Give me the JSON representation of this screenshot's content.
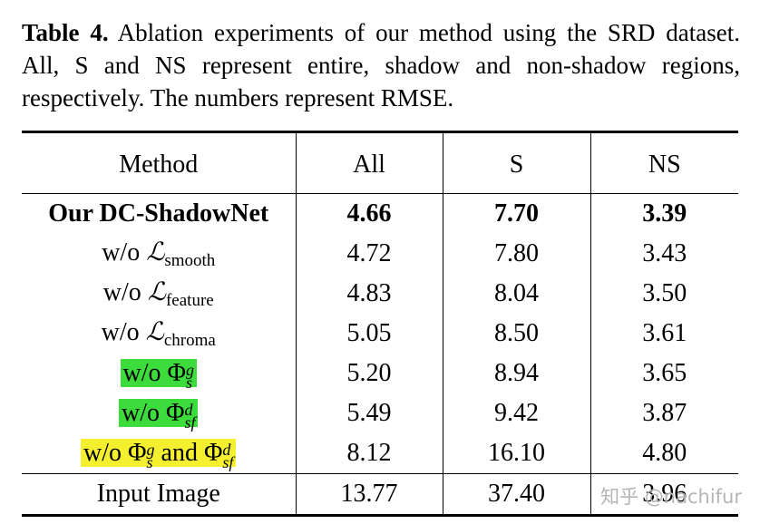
{
  "caption": {
    "label": "Table 4.",
    "text": "Ablation experiments of our method using the SRD dataset. All, S and NS represent entire, shadow and non-shadow regions, respectively. The numbers represent RMSE."
  },
  "table": {
    "headers": [
      "Method",
      "All",
      "S",
      "NS"
    ],
    "rows": [
      {
        "method": "Our DC-ShadowNet",
        "all": "4.66",
        "s": "7.70",
        "ns": "3.39"
      },
      {
        "method_prefix": "w/o",
        "loss_symbol": "ℒ",
        "loss_sub": "smooth",
        "all": "4.72",
        "s": "7.80",
        "ns": "3.43"
      },
      {
        "method_prefix": "w/o",
        "loss_symbol": "ℒ",
        "loss_sub": "feature",
        "all": "4.83",
        "s": "8.04",
        "ns": "3.50"
      },
      {
        "method_prefix": "w/o",
        "loss_symbol": "ℒ",
        "loss_sub": "chroma",
        "all": "5.05",
        "s": "8.50",
        "ns": "3.61"
      },
      {
        "method_prefix": "w/o",
        "phi": "Φ",
        "sup": "g",
        "sub": "s",
        "all": "5.20",
        "s": "8.94",
        "ns": "3.65"
      },
      {
        "method_prefix": "w/o",
        "phi": "Φ",
        "sup": "d",
        "sub": "sf",
        "all": "5.49",
        "s": "9.42",
        "ns": "3.87"
      },
      {
        "method_prefix": "w/o",
        "phi": "Φ",
        "sup": "g",
        "sub": "s",
        "and": "and",
        "phi2": "Φ",
        "sup2": "d",
        "sub2": "sf",
        "all": "8.12",
        "s": "16.10",
        "ns": "4.80"
      },
      {
        "method": "Input Image",
        "all": "13.77",
        "s": "37.40",
        "ns": "3.96"
      }
    ]
  },
  "watermark": "知乎 @nachifur",
  "colors": {
    "highlight_green": "#3ddc3d",
    "highlight_yellow": "#f4f030"
  }
}
